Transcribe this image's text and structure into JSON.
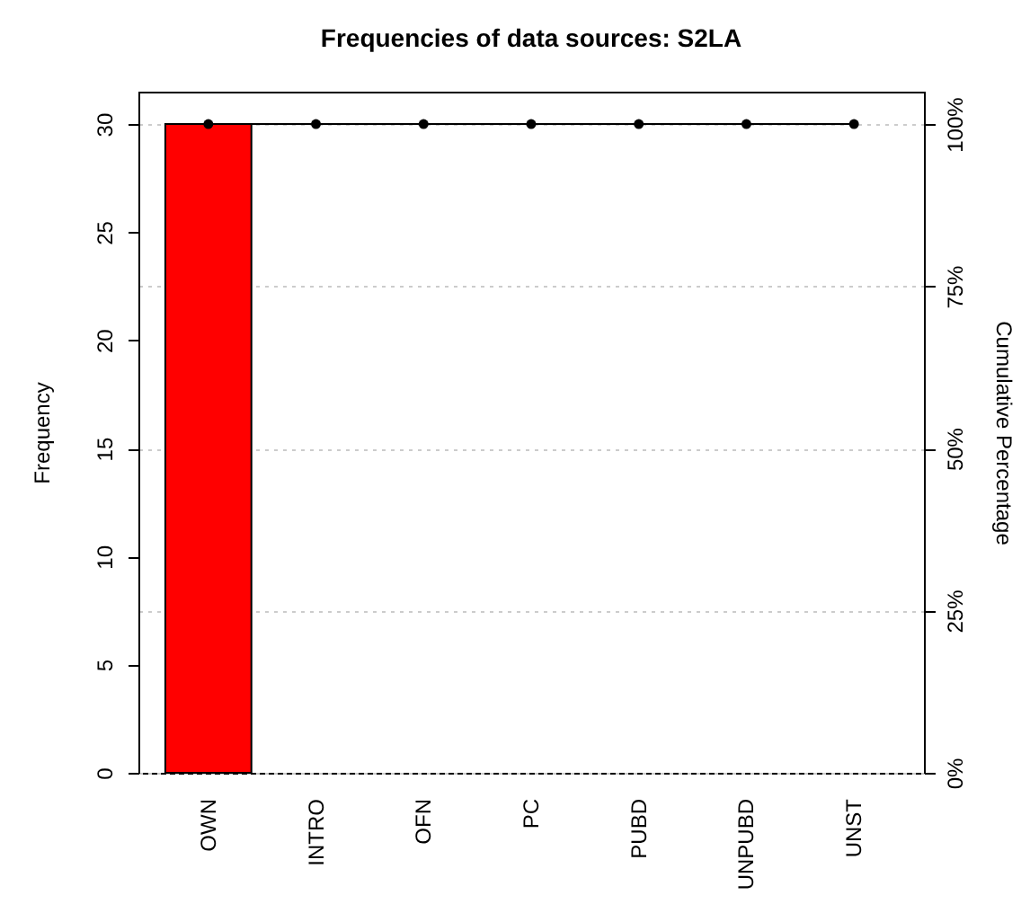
{
  "chart_data": {
    "type": "bar",
    "title": "Frequencies of data sources: S2LA",
    "xlabel": null,
    "ylabel": "Frequency",
    "y2label": "Cumulative Percentage",
    "categories": [
      "OWN",
      "INTRO",
      "OFN",
      "PC",
      "PUBD",
      "UNPUBD",
      "UNST"
    ],
    "series": [
      {
        "color": "#ff0000",
        "values": [
          30,
          0,
          0,
          0,
          0,
          0,
          0
        ]
      },
      {
        "type": "line",
        "axis": "y2",
        "color": "#000000",
        "marker": "circle",
        "values": [
          100,
          100,
          100,
          100,
          100,
          100,
          100
        ]
      }
    ],
    "ylim": [
      0,
      31.5
    ],
    "yticks": [
      0,
      5,
      10,
      15,
      20,
      25,
      30
    ],
    "y2lim": [
      0,
      105
    ],
    "y2ticks": [
      {
        "value": 0,
        "label": "0%"
      },
      {
        "value": 25,
        "label": "25%"
      },
      {
        "value": 50,
        "label": "50%"
      },
      {
        "value": 75,
        "label": "75%"
      },
      {
        "value": 100,
        "label": "100%"
      }
    ],
    "grid": "y2"
  }
}
